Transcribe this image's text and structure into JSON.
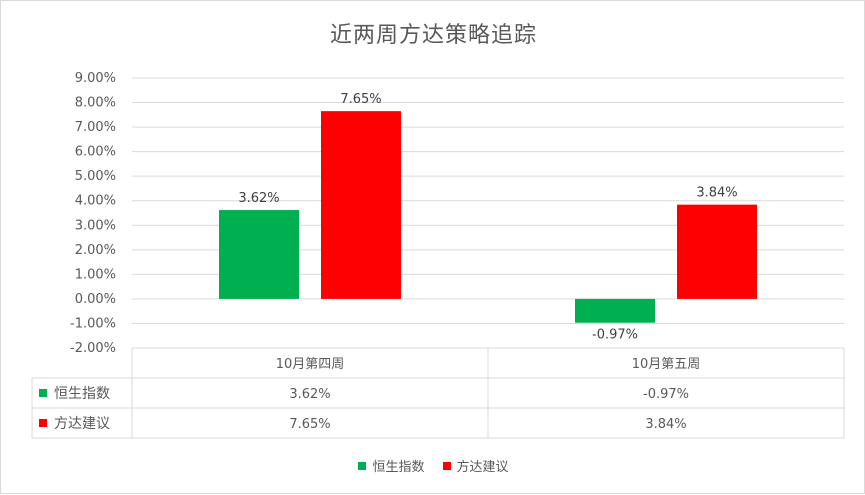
{
  "chart_data": {
    "type": "bar",
    "title": "近两周方达策略追踪",
    "categories": [
      "10月第四周",
      "10月第五周"
    ],
    "series": [
      {
        "name": "恒生指数",
        "values": [
          3.62,
          -0.97
        ],
        "labels": [
          "3.62%",
          "-0.97%"
        ],
        "color": "#00b050"
      },
      {
        "name": "方达建议",
        "values": [
          7.65,
          3.84
        ],
        "labels": [
          "7.65%",
          "3.84%"
        ],
        "color": "#ff0000"
      }
    ],
    "ylim": [
      -2,
      9
    ],
    "ytick_step": 1,
    "ytick_labels": [
      "-2.00%",
      "-1.00%",
      "0.00%",
      "1.00%",
      "2.00%",
      "3.00%",
      "4.00%",
      "5.00%",
      "6.00%",
      "7.00%",
      "8.00%",
      "9.00%"
    ],
    "data_table": true,
    "grid": true,
    "legend": "bottom"
  }
}
